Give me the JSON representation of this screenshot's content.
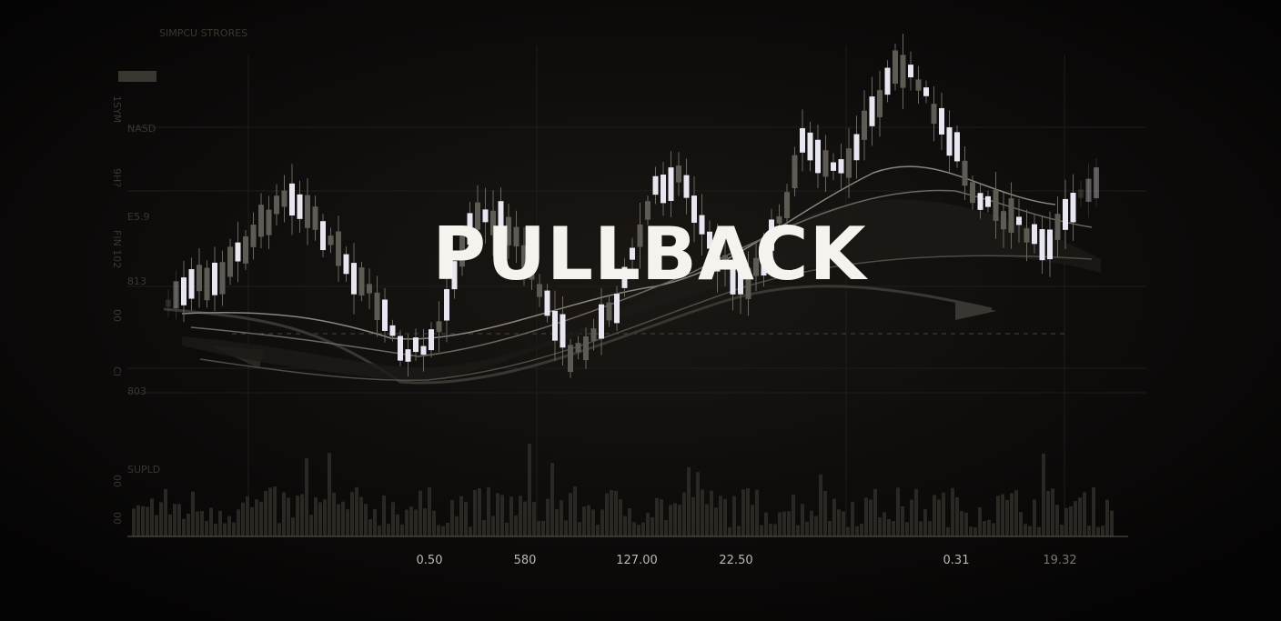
{
  "title": "PULLBACK",
  "header": "SIMPCU STRORES",
  "left_labels": [
    "1SYM",
    "9H?",
    "FIN 102",
    "00",
    "CI",
    "00",
    "00"
  ],
  "inner_labels": [
    "NASD",
    "E5.9",
    "813",
    "803",
    "SUPLD"
  ],
  "x_labels": [
    "0.50",
    "580",
    "127.00",
    "22.50",
    "0.31",
    "19.32"
  ]
}
